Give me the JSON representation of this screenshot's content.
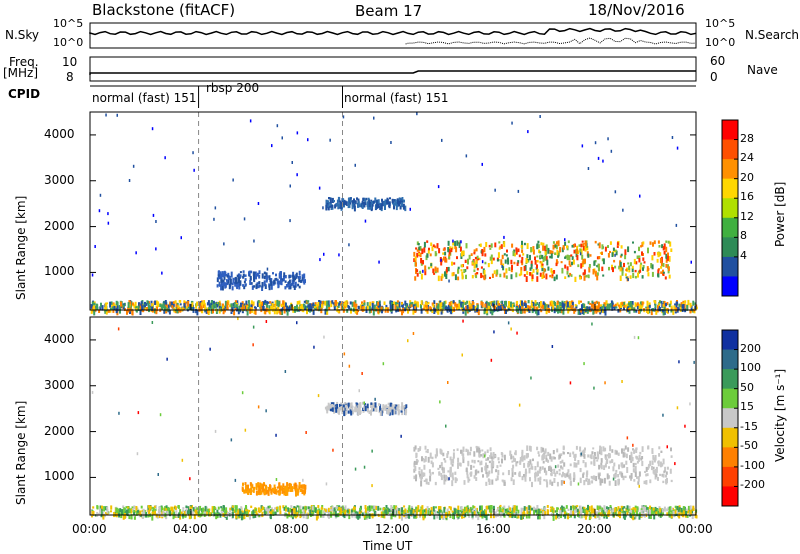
{
  "header": {
    "site": "Blackstone (fitACF)",
    "beam": "Beam 17",
    "date": "18/Nov/2016"
  },
  "sidepanel": {
    "nsky": "N.Sky",
    "nsearch": "N.Search",
    "freq": "Freq.",
    "mhz": "[MHz]",
    "nave": "Nave",
    "cpid": "CPID",
    "sky_ticks": [
      "10^5",
      "10^0"
    ],
    "freq_ticks": [
      "10",
      "8"
    ],
    "search_ticks": [
      "10^5",
      "10^0"
    ],
    "nave_ticks": [
      "60",
      "0"
    ]
  },
  "cpid_labels": [
    {
      "text": "normal (fast) 151",
      "t": 0.0
    },
    {
      "text": "rbsp 200",
      "t": 4.3
    },
    {
      "text": "normal (fast) 151",
      "t": 10.0
    }
  ],
  "colorbars": {
    "power": {
      "label": "Power [dB]",
      "ticks": [
        "28",
        "24",
        "20",
        "16",
        "12",
        "8",
        "4"
      ],
      "colors": [
        "#ff0000",
        "#ff5000",
        "#ff9000",
        "#ffd700",
        "#b0e000",
        "#40b040",
        "#2e8b57",
        "#2050a0",
        "#0000ff"
      ]
    },
    "velocity": {
      "label": "Velocity [m s⁻¹]",
      "ticks": [
        "200",
        "100",
        "50",
        "15",
        "-15",
        "-50",
        "-100",
        "-200"
      ],
      "colors": [
        "#1030a0",
        "#2e6b8a",
        "#3a9a5a",
        "#6ccc3a",
        "#c8c8c8",
        "#f0c000",
        "#ff8000",
        "#ff4000",
        "#ff0000"
      ]
    }
  },
  "axes": {
    "ylabel": "Slant Range [km]",
    "xlabel": "Time UT",
    "xticks": [
      "00:00",
      "04:00",
      "08:00",
      "12:00",
      "16:00",
      "20:00",
      "00:00"
    ],
    "yticks": [
      "1000",
      "2000",
      "3000",
      "4000"
    ]
  },
  "chart_data": {
    "type": "heatmap",
    "x_unit": "hours UT",
    "xlim": [
      0,
      24
    ],
    "ylim": [
      180,
      4500
    ],
    "panels": [
      {
        "name": "Power",
        "features": [
          {
            "t0": 12.8,
            "t1": 23.0,
            "range_low": 900,
            "range_high": 1700,
            "value": "14-28 dB"
          },
          {
            "t0": 9.3,
            "t1": 12.5,
            "range_low": 2450,
            "range_high": 2650,
            "value": "6 dB"
          },
          {
            "t0": 5.0,
            "t1": 8.5,
            "range_low": 700,
            "range_high": 1050,
            "value": "7 dB"
          },
          {
            "t0": 0.0,
            "t1": 24.0,
            "range_low": 180,
            "range_high": 400,
            "value": "4-20 dB"
          }
        ]
      },
      {
        "name": "Velocity",
        "features": [
          {
            "t0": 12.8,
            "t1": 23.0,
            "range_low": 900,
            "range_high": 1700,
            "value": "-15 to 15 m/s"
          },
          {
            "t0": 9.3,
            "t1": 12.5,
            "range_low": 2450,
            "range_high": 2650,
            "value": "-15 to 15 m/s"
          },
          {
            "t0": 6.0,
            "t1": 8.5,
            "range_low": 700,
            "range_high": 900,
            "value": "-50 m/s"
          },
          {
            "t0": 0.0,
            "t1": 24.0,
            "range_low": 180,
            "range_high": 400,
            "value": "-50 to 50 m/s"
          }
        ]
      }
    ]
  }
}
